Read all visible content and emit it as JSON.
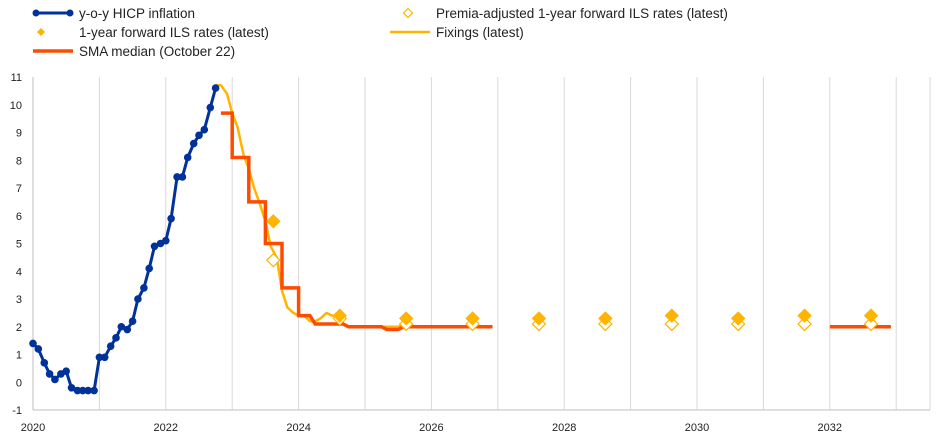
{
  "chart_data": {
    "type": "line",
    "title": "",
    "xlabel": "",
    "ylabel": "",
    "xlim": [
      2020.0,
      2033.5
    ],
    "ylim": [
      -1,
      11
    ],
    "x_ticks": [
      {
        "value": 2020,
        "label": "2020"
      },
      {
        "value": 2022,
        "label": "2022"
      },
      {
        "value": 2024,
        "label": "2024"
      },
      {
        "value": 2026,
        "label": "2026"
      },
      {
        "value": 2028,
        "label": "2028"
      },
      {
        "value": 2030,
        "label": "2030"
      },
      {
        "value": 2032,
        "label": "2032"
      }
    ],
    "y_ticks": [
      {
        "value": 11,
        "label": "11"
      },
      {
        "value": 10,
        "label": "10"
      },
      {
        "value": 9,
        "label": "9"
      },
      {
        "value": 8,
        "label": "8"
      },
      {
        "value": 7,
        "label": "7"
      },
      {
        "value": 6,
        "label": "6"
      },
      {
        "value": 5,
        "label": "5"
      },
      {
        "value": 4,
        "label": "4"
      },
      {
        "value": 3,
        "label": "3"
      },
      {
        "value": 2,
        "label": "2"
      },
      {
        "value": 1,
        "label": "1"
      },
      {
        "value": 0,
        "label": "0"
      },
      {
        "value": -1,
        "label": "-1"
      }
    ],
    "grid": "vertical",
    "legend_position": "top",
    "series": [
      {
        "name": "y-o-y HICP inflation",
        "kind": "line_markers",
        "color": "#003299",
        "points": [
          [
            2020.0,
            1.4
          ],
          [
            2020.08,
            1.2
          ],
          [
            2020.17,
            0.7
          ],
          [
            2020.25,
            0.3
          ],
          [
            2020.33,
            0.1
          ],
          [
            2020.42,
            0.3
          ],
          [
            2020.5,
            0.4
          ],
          [
            2020.58,
            -0.2
          ],
          [
            2020.67,
            -0.3
          ],
          [
            2020.75,
            -0.3
          ],
          [
            2020.83,
            -0.3
          ],
          [
            2020.92,
            -0.3
          ],
          [
            2021.0,
            0.9
          ],
          [
            2021.08,
            0.9
          ],
          [
            2021.17,
            1.3
          ],
          [
            2021.25,
            1.6
          ],
          [
            2021.33,
            2.0
          ],
          [
            2021.42,
            1.9
          ],
          [
            2021.5,
            2.2
          ],
          [
            2021.58,
            3.0
          ],
          [
            2021.67,
            3.4
          ],
          [
            2021.75,
            4.1
          ],
          [
            2021.83,
            4.9
          ],
          [
            2021.92,
            5.0
          ],
          [
            2022.0,
            5.1
          ],
          [
            2022.08,
            5.9
          ],
          [
            2022.17,
            7.4
          ],
          [
            2022.25,
            7.4
          ],
          [
            2022.33,
            8.1
          ],
          [
            2022.42,
            8.6
          ],
          [
            2022.5,
            8.9
          ],
          [
            2022.58,
            9.1
          ],
          [
            2022.67,
            9.9
          ],
          [
            2022.75,
            10.6
          ]
        ]
      },
      {
        "name": "Premia-adjusted 1-year forward ILS rates (latest)",
        "kind": "markers_hollow_diamond",
        "color": "#ffb400",
        "points": [
          [
            2023.62,
            4.4
          ],
          [
            2024.62,
            2.3
          ],
          [
            2025.62,
            2.1
          ],
          [
            2026.62,
            2.1
          ],
          [
            2027.62,
            2.1
          ],
          [
            2028.62,
            2.1
          ],
          [
            2029.62,
            2.1
          ],
          [
            2030.62,
            2.1
          ],
          [
            2031.62,
            2.1
          ],
          [
            2032.62,
            2.1
          ]
        ]
      },
      {
        "name": "1-year forward ILS rates (latest)",
        "kind": "markers_filled_diamond",
        "color": "#ffb400",
        "points": [
          [
            2023.62,
            5.8
          ],
          [
            2024.62,
            2.4
          ],
          [
            2025.62,
            2.3
          ],
          [
            2026.62,
            2.3
          ],
          [
            2027.62,
            2.3
          ],
          [
            2028.62,
            2.3
          ],
          [
            2029.62,
            2.4
          ],
          [
            2030.62,
            2.3
          ],
          [
            2031.62,
            2.4
          ],
          [
            2032.62,
            2.4
          ]
        ]
      },
      {
        "name": "Fixings (latest)",
        "kind": "line",
        "color": "#ffb400",
        "points": [
          [
            2022.75,
            10.7
          ],
          [
            2022.83,
            10.7
          ],
          [
            2022.92,
            10.4
          ],
          [
            2023.0,
            9.7
          ],
          [
            2023.08,
            9.2
          ],
          [
            2023.17,
            8.2
          ],
          [
            2023.25,
            7.7
          ],
          [
            2023.33,
            7.0
          ],
          [
            2023.42,
            6.4
          ],
          [
            2023.5,
            5.8
          ],
          [
            2023.58,
            4.9
          ],
          [
            2023.67,
            4.5
          ],
          [
            2023.75,
            3.3
          ],
          [
            2023.83,
            2.7
          ],
          [
            2023.92,
            2.5
          ],
          [
            2024.0,
            2.4
          ],
          [
            2024.08,
            2.4
          ],
          [
            2024.17,
            2.2
          ],
          [
            2024.25,
            2.2
          ],
          [
            2024.33,
            2.3
          ],
          [
            2024.42,
            2.5
          ],
          [
            2024.5,
            2.4
          ],
          [
            2024.58,
            2.4
          ],
          [
            2024.67,
            2.1
          ],
          [
            2024.75,
            2.0
          ],
          [
            2024.83,
            2.0
          ],
          [
            2024.92,
            2.0
          ],
          [
            2025.0,
            2.0
          ],
          [
            2025.08,
            2.0
          ],
          [
            2025.17,
            2.0
          ],
          [
            2025.25,
            2.0
          ],
          [
            2025.42,
            2.0
          ],
          [
            2025.5,
            2.0
          ],
          [
            2025.58,
            2.1
          ],
          [
            2025.67,
            2.1
          ],
          [
            2025.75,
            2.0
          ],
          [
            2025.83,
            2.0
          ],
          [
            2025.92,
            2.0
          ]
        ]
      },
      {
        "name": "SMA median (October 22)",
        "kind": "step",
        "color": "#ff4b00",
        "segments": [
          [
            [
              2022.83,
              9.7
            ],
            [
              2023.0,
              9.7
            ],
            [
              2023.0,
              8.1
            ],
            [
              2023.25,
              8.1
            ],
            [
              2023.25,
              6.5
            ],
            [
              2023.5,
              6.5
            ],
            [
              2023.5,
              5.0
            ],
            [
              2023.75,
              5.0
            ],
            [
              2023.75,
              3.4
            ],
            [
              2024.0,
              3.4
            ],
            [
              2024.0,
              2.4
            ],
            [
              2024.08,
              2.4
            ],
            [
              2024.17,
              2.4
            ],
            [
              2024.25,
              2.1
            ],
            [
              2024.42,
              2.1
            ],
            [
              2024.67,
              2.1
            ],
            [
              2024.75,
              2.0
            ],
            [
              2025.25,
              2.0
            ],
            [
              2025.33,
              1.9
            ],
            [
              2025.5,
              1.9
            ],
            [
              2025.58,
              2.0
            ],
            [
              2026.0,
              2.0
            ],
            [
              2026.5,
              2.0
            ],
            [
              2026.92,
              2.0
            ]
          ],
          [
            [
              2032.0,
              2.0
            ],
            [
              2032.5,
              2.0
            ],
            [
              2032.92,
              2.0
            ]
          ]
        ]
      }
    ]
  }
}
